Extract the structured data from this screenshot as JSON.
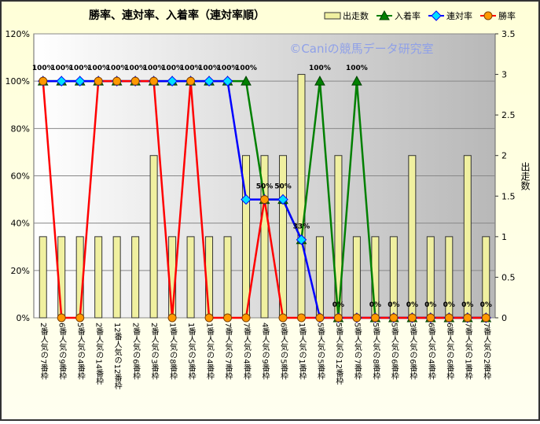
{
  "chart_data": {
    "type": "combo",
    "title": "勝率、連対率、入着率（連対率順）",
    "watermark": "©Caniの競馬データ研究室",
    "y2_label": "出走数",
    "categories": [
      "2番人気の7番枠",
      "6番人気の9番枠",
      "5番人気の4番枠",
      "2番人気の14番枠",
      "12番人気の12番枠",
      "2番人気の6番枠",
      "2番人気の3番枠",
      "1番人気の8番枠",
      "1番人気の5番枠",
      "1番人気の4番枠",
      "7番人気の7番枠",
      "7番人気の4番枠",
      "4番人気の9番枠",
      "6番人気の5番枠",
      "1番人気の1番枠",
      "5番人気の5番枠",
      "5番人気の12番枠",
      "5番人気の7番枠",
      "5番人気の8番枠",
      "5番人気の6番枠",
      "3番人気の6番枠",
      "6番人気の4番枠",
      "6番人気の6番枠",
      "7番人気の1番枠",
      "7番人気の2番枠"
    ],
    "series": [
      {
        "name": "出走数",
        "kind": "bar",
        "axis": "y2",
        "color": "#f0f0a0",
        "values": [
          1,
          1,
          1,
          1,
          1,
          1,
          2,
          1,
          1,
          1,
          1,
          2,
          2,
          2,
          3,
          1,
          2,
          1,
          1,
          1,
          2,
          1,
          1,
          2,
          1
        ]
      },
      {
        "name": "入着率",
        "kind": "line",
        "marker": "triangle",
        "color": "#008000",
        "values": [
          100,
          100,
          100,
          100,
          100,
          100,
          100,
          100,
          100,
          100,
          100,
          100,
          50,
          50,
          33,
          100,
          0,
          100,
          0,
          0,
          0,
          0,
          0,
          0,
          0
        ],
        "value_labels": [
          "100%",
          "100%",
          "100%",
          "100%",
          "100%",
          "100%",
          "100%",
          "100%",
          "100%",
          "100%",
          "100%",
          "100%",
          "50%",
          "50%",
          "33%",
          "100%",
          "0%",
          "100%",
          "0%",
          "0%",
          "0%",
          "0%",
          "0%",
          "0%",
          "0%"
        ]
      },
      {
        "name": "連対率",
        "kind": "line",
        "marker": "diamond",
        "color": "#0000ff",
        "values": [
          100,
          100,
          100,
          100,
          100,
          100,
          100,
          100,
          100,
          100,
          100,
          50,
          50,
          50,
          33,
          0,
          0,
          0,
          0,
          0,
          0,
          0,
          0,
          0,
          0
        ]
      },
      {
        "name": "勝率",
        "kind": "line",
        "marker": "circle",
        "color": "#ff0000",
        "values": [
          100,
          0,
          0,
          100,
          100,
          100,
          100,
          0,
          100,
          0,
          0,
          0,
          50,
          0,
          0,
          0,
          0,
          0,
          0,
          0,
          0,
          0,
          0,
          0,
          0
        ]
      }
    ],
    "ylim": [
      0,
      120
    ],
    "yticks": [
      {
        "value": 0,
        "label": "0%"
      },
      {
        "value": 20,
        "label": "20%"
      },
      {
        "value": 40,
        "label": "40%"
      },
      {
        "value": 60,
        "label": "60%"
      },
      {
        "value": 80,
        "label": "80%"
      },
      {
        "value": 100,
        "label": "100%"
      },
      {
        "value": 120,
        "label": "120%"
      }
    ],
    "y2lim": [
      0,
      3.5
    ],
    "y2ticks": [
      0,
      0.5,
      1,
      1.5,
      2,
      2.5,
      3,
      3.5
    ],
    "grid": true
  }
}
